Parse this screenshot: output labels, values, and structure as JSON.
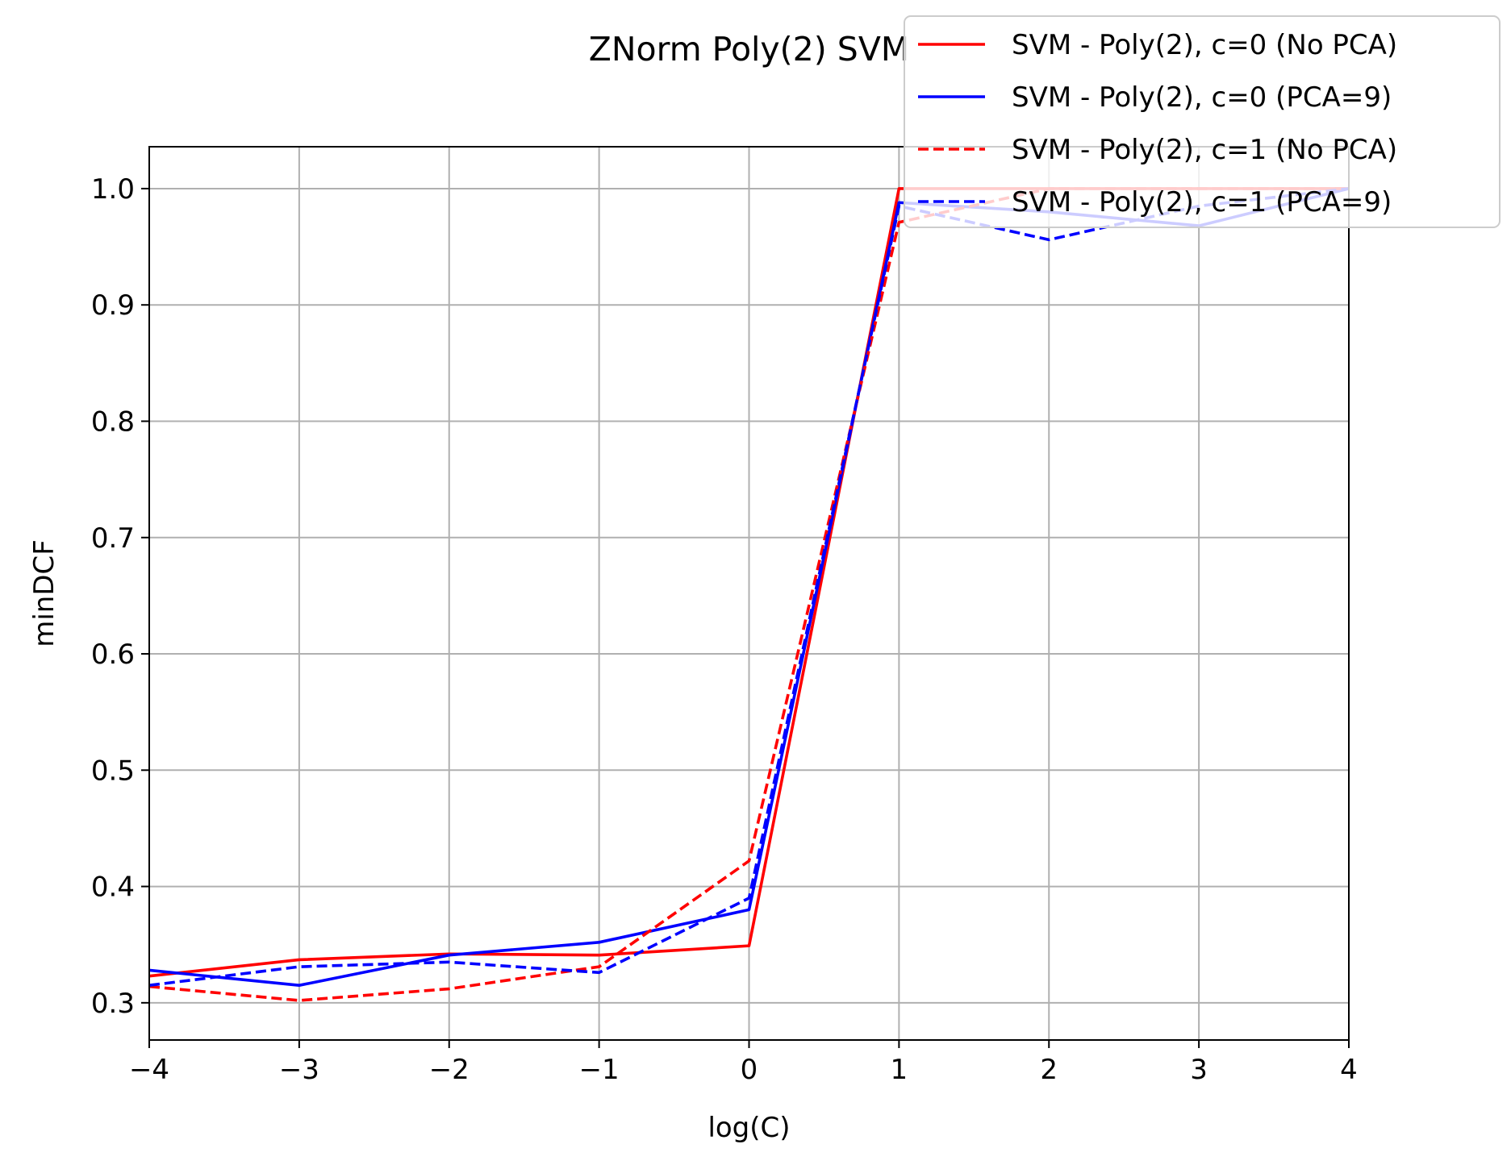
{
  "chart_data": {
    "type": "line",
    "title": "ZNorm Poly(2) SVM",
    "xlabel": "log(C)",
    "ylabel": "minDCF",
    "xlim": [
      -4,
      4
    ],
    "ylim": [
      0.268,
      1.036
    ],
    "xticks": [
      -4,
      -3,
      -2,
      -1,
      0,
      1,
      2,
      3,
      4
    ],
    "xtick_labels": [
      "−4",
      "−3",
      "−2",
      "−1",
      "0",
      "1",
      "2",
      "3",
      "4"
    ],
    "yticks": [
      0.3,
      0.4,
      0.5,
      0.6,
      0.7,
      0.8,
      0.9,
      1.0
    ],
    "ytick_labels": [
      "0.3",
      "0.4",
      "0.5",
      "0.6",
      "0.7",
      "0.8",
      "0.9",
      "1.0"
    ],
    "grid": true,
    "legend_position": "top-right",
    "x": [
      -4,
      -3,
      -2,
      -1,
      0,
      1,
      2,
      3,
      4
    ],
    "series": [
      {
        "name": "SVM - Poly(2), c=0 (No PCA)",
        "color": "#ff0000",
        "style": "solid",
        "values": [
          0.323,
          0.337,
          0.342,
          0.341,
          0.349,
          1.0,
          1.0,
          1.0,
          1.0
        ]
      },
      {
        "name": "SVM - Poly(2), c=0 (PCA=9)",
        "color": "#0000ff",
        "style": "solid",
        "values": [
          0.328,
          0.315,
          0.341,
          0.352,
          0.38,
          0.988,
          0.98,
          0.968,
          1.0
        ]
      },
      {
        "name": "SVM - Poly(2), c=1 (No PCA)",
        "color": "#ff0000",
        "style": "dashed",
        "values": [
          0.314,
          0.302,
          0.312,
          0.331,
          0.422,
          0.971,
          1.0,
          1.0,
          1.0
        ]
      },
      {
        "name": "SVM - Poly(2), c=1 (PCA=9)",
        "color": "#0000ff",
        "style": "dashed",
        "values": [
          0.315,
          0.331,
          0.335,
          0.326,
          0.39,
          0.985,
          0.956,
          0.985,
          1.0
        ]
      }
    ]
  }
}
